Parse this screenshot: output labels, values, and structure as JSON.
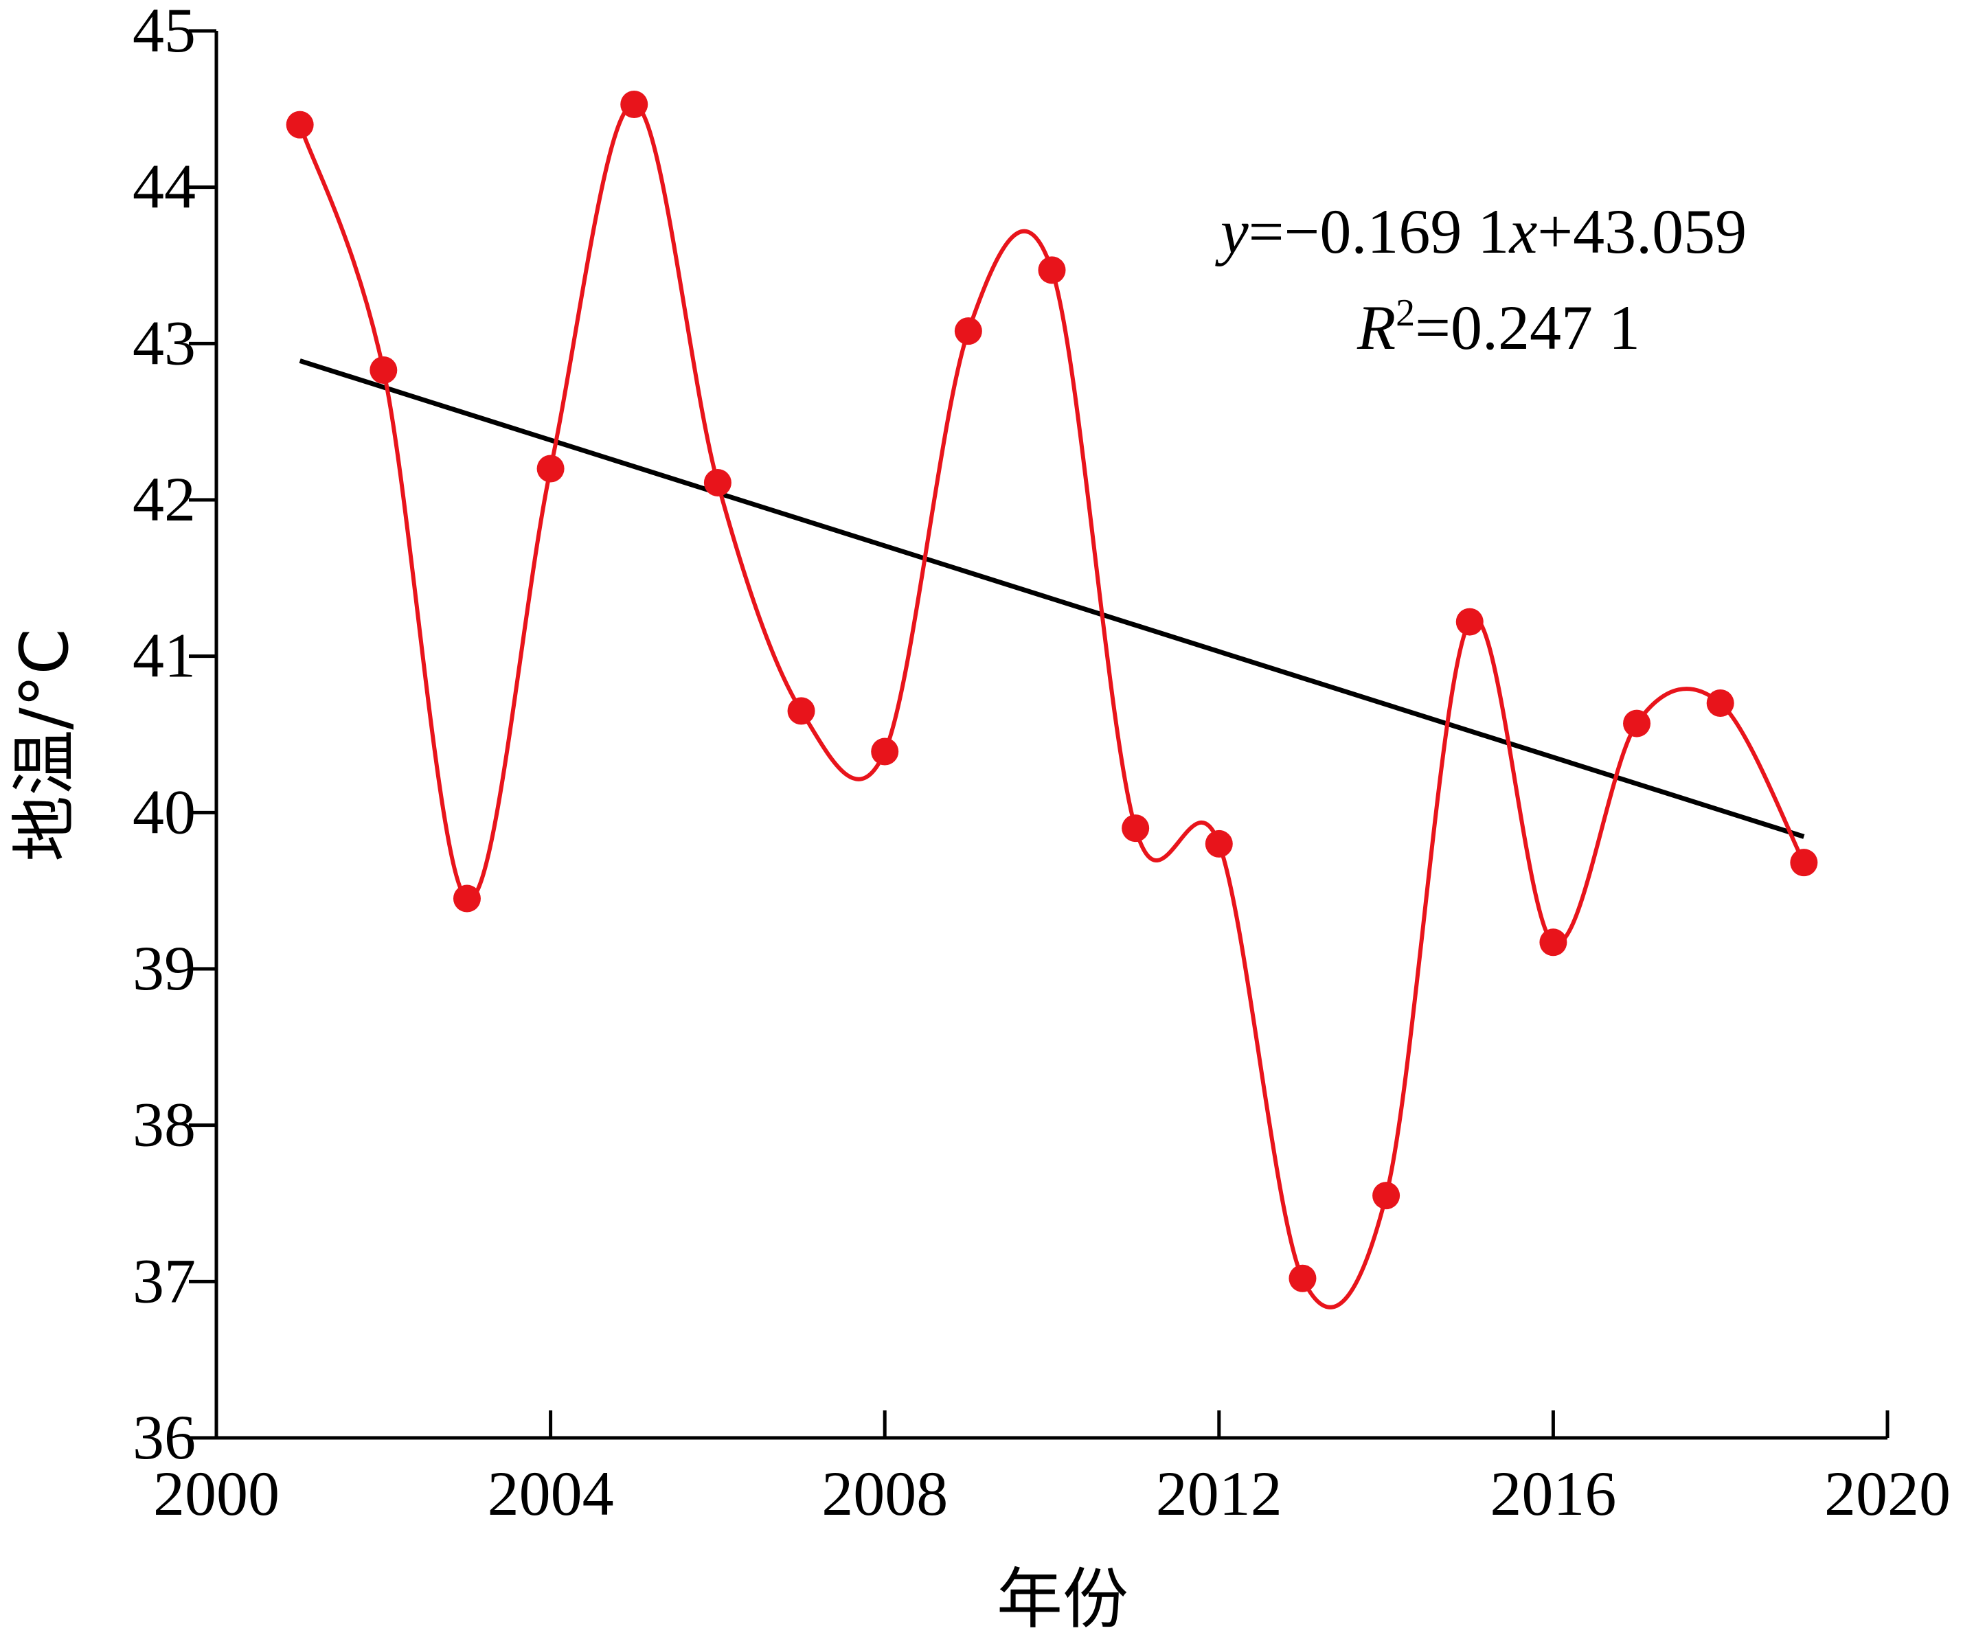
{
  "chart_data": {
    "type": "line",
    "xlabel": "年份",
    "ylabel": "地温/°C",
    "xlim": [
      2000,
      2020
    ],
    "ylim": [
      36,
      45
    ],
    "xticks": [
      2000,
      2004,
      2008,
      2012,
      2016,
      2020
    ],
    "yticks": [
      36,
      37,
      38,
      39,
      40,
      41,
      42,
      43,
      44,
      45
    ],
    "grid": false,
    "colors": {
      "series": "#e8141b",
      "trend": "#000000"
    },
    "series": [
      {
        "x": [
          2001,
          2002,
          2003,
          2004,
          2005,
          2006,
          2007,
          2008,
          2009,
          2010,
          2011,
          2012,
          2013,
          2014,
          2015,
          2016,
          2017,
          2018,
          2019
        ],
        "values": [
          44.4,
          42.83,
          39.45,
          42.2,
          44.53,
          42.11,
          40.65,
          40.39,
          43.08,
          43.47,
          39.9,
          39.8,
          37.02,
          37.55,
          41.22,
          39.17,
          40.57,
          40.7,
          39.68
        ]
      }
    ],
    "trendline": {
      "slope": -0.1691,
      "intercept": 43.059
    },
    "annotations": {
      "equation": {
        "y": "y",
        "rest1": "=−0.169 1",
        "x": "x",
        "rest2": "+43.059"
      },
      "r2": {
        "R": "R",
        "sup": "2",
        "value": "=0.247 1"
      }
    }
  }
}
